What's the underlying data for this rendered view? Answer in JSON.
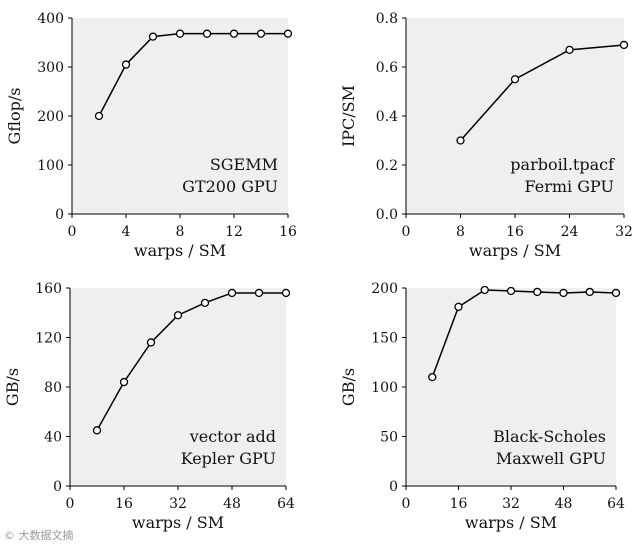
{
  "watermark": "© 大数据文摘",
  "chart_data": [
    {
      "type": "line",
      "xlabel": "warps / SM",
      "ylabel": "Gflop/s",
      "annotation": [
        "SGEMM",
        "GT200 GPU"
      ],
      "xlim": [
        0,
        16
      ],
      "ylim": [
        0,
        400
      ],
      "xticks": [
        0,
        4,
        8,
        12,
        16
      ],
      "yticks": [
        0,
        100,
        200,
        300,
        400
      ],
      "x": [
        2,
        4,
        6,
        8,
        10,
        12,
        14,
        16
      ],
      "y": [
        200,
        305,
        362,
        368,
        368,
        368,
        368,
        368
      ]
    },
    {
      "type": "line",
      "xlabel": "warps / SM",
      "ylabel": "IPC/SM",
      "annotation": [
        "parboil.tpacf",
        "Fermi GPU"
      ],
      "xlim": [
        0,
        32
      ],
      "ylim": [
        0,
        0.8
      ],
      "xticks": [
        0,
        8,
        16,
        24,
        32
      ],
      "yticks": [
        "0.0",
        "0.2",
        "0.4",
        "0.6",
        "0.8"
      ],
      "x": [
        8,
        16,
        24,
        32
      ],
      "y": [
        0.3,
        0.55,
        0.67,
        0.69
      ]
    },
    {
      "type": "line",
      "xlabel": "warps / SM",
      "ylabel": "GB/s",
      "annotation": [
        "vector add",
        "Kepler GPU"
      ],
      "xlim": [
        0,
        64
      ],
      "ylim": [
        0,
        160
      ],
      "xticks": [
        0,
        16,
        32,
        48,
        64
      ],
      "yticks": [
        0,
        40,
        80,
        120,
        160
      ],
      "x": [
        8,
        16,
        24,
        32,
        40,
        48,
        56,
        64
      ],
      "y": [
        45,
        84,
        116,
        138,
        148,
        156,
        156,
        156
      ]
    },
    {
      "type": "line",
      "xlabel": "warps / SM",
      "ylabel": "GB/s",
      "annotation": [
        "Black-Scholes",
        "Maxwell GPU"
      ],
      "xlim": [
        0,
        64
      ],
      "ylim": [
        0,
        200
      ],
      "xticks": [
        0,
        16,
        32,
        48,
        64
      ],
      "yticks": [
        0,
        50,
        100,
        150,
        200
      ],
      "x": [
        8,
        16,
        24,
        32,
        40,
        48,
        56,
        64
      ],
      "y": [
        110,
        181,
        198,
        197,
        196,
        195,
        196,
        195
      ]
    }
  ]
}
